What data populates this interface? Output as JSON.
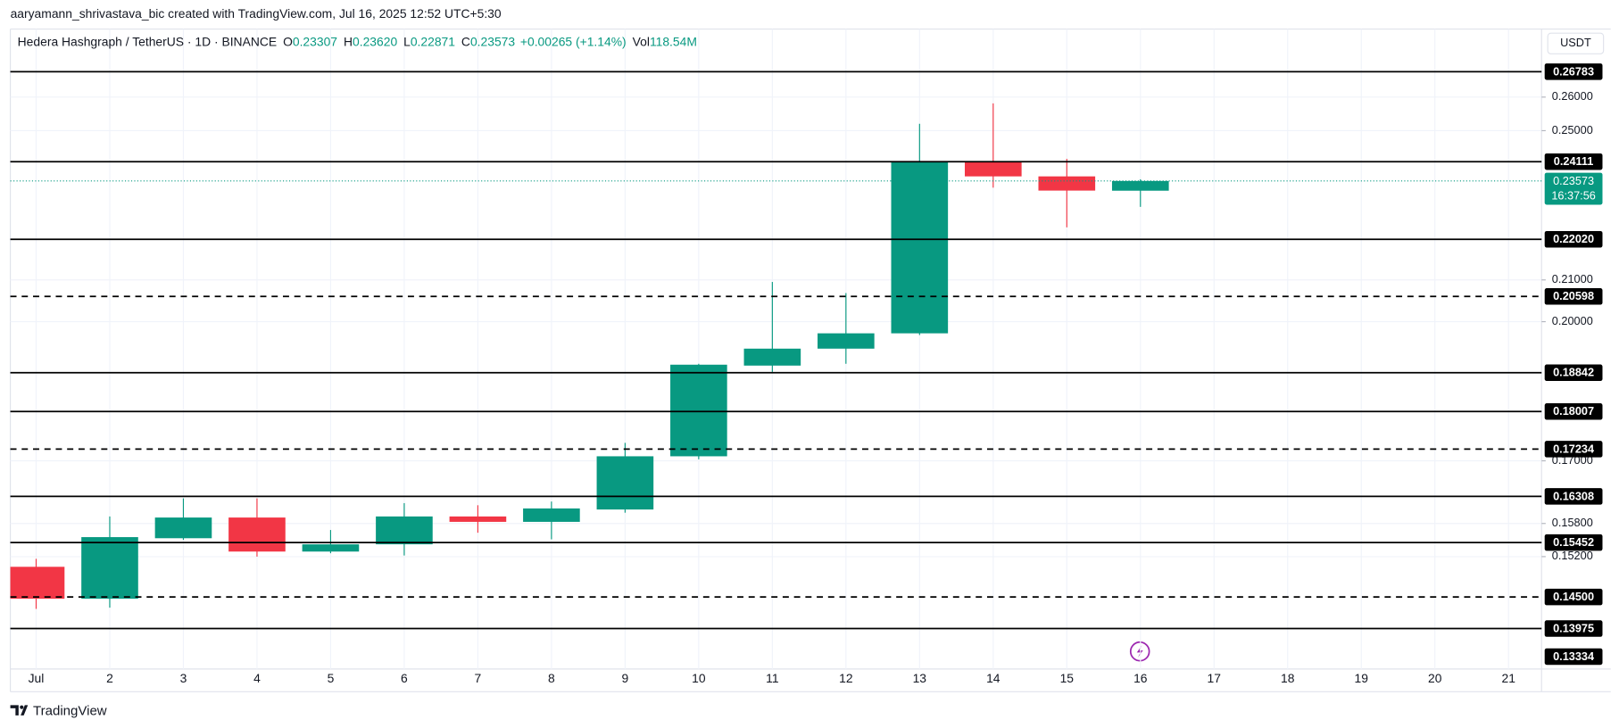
{
  "credit": "aaryamann_shrivastava_bic created with TradingView.com, Jul 16, 2025 12:52 UTC+5:30",
  "brand": "TradingView",
  "chart_data": {
    "type": "candlestick",
    "title": "Hedera Hashgraph / TetherUS · 1D · BINANCE",
    "header": [
      {
        "key": "O",
        "value": "0.23307"
      },
      {
        "key": "H",
        "value": "0.23620"
      },
      {
        "key": "L",
        "value": "0.22871"
      },
      {
        "key": "C",
        "value": "0.23573"
      }
    ],
    "change": "+0.00265 (+1.14%)",
    "volume_key": "Vol",
    "volume": "118.54M",
    "currency": "USDT",
    "categories": [
      "Jul",
      "2",
      "3",
      "4",
      "5",
      "6",
      "7",
      "8",
      "9",
      "10",
      "11",
      "12",
      "13",
      "14",
      "15",
      "16",
      "17",
      "18",
      "19",
      "20",
      "21"
    ],
    "open": [
      0.1502,
      0.1447,
      0.1553,
      0.1591,
      0.1529,
      0.1542,
      0.1593,
      0.1583,
      0.1606,
      0.1709,
      0.19,
      0.1938,
      0.1973,
      0.2411,
      0.237,
      0.23307,
      null,
      null,
      null,
      null,
      null
    ],
    "high": [
      0.1516,
      0.1593,
      0.1627,
      0.1627,
      0.1568,
      0.1618,
      0.1614,
      0.1621,
      0.1736,
      0.1904,
      0.2095,
      0.2068,
      0.252,
      0.2581,
      0.2419,
      0.2362,
      null,
      null,
      null,
      null,
      null
    ],
    "low": [
      0.143,
      0.1432,
      0.155,
      0.152,
      0.1526,
      0.1522,
      0.1563,
      0.1551,
      0.16,
      0.1703,
      0.1886,
      0.1904,
      0.1969,
      0.2339,
      0.2233,
      0.22871,
      null,
      null,
      null,
      null,
      null
    ],
    "close": [
      0.1447,
      0.1555,
      0.1591,
      0.1529,
      0.1542,
      0.1593,
      0.1583,
      0.1608,
      0.1709,
      0.1902,
      0.1938,
      0.1973,
      0.2411,
      0.237,
      0.2331,
      0.23573,
      null,
      null,
      null,
      null,
      null
    ],
    "up_color": "#089981",
    "down_color": "#f23645",
    "log_scale": true,
    "ylim": [
      0.1333,
      0.2815
    ],
    "yticks": [
      {
        "value": 0.26,
        "label": "0.26000"
      },
      {
        "value": 0.25,
        "label": "0.25000"
      },
      {
        "value": 0.21,
        "label": "0.21000"
      },
      {
        "value": 0.2,
        "label": "0.20000"
      },
      {
        "value": 0.17,
        "label": "0.17000"
      },
      {
        "value": 0.158,
        "label": "0.15800"
      },
      {
        "value": 0.152,
        "label": "0.15200"
      }
    ],
    "grid": true,
    "level_color": "#000000",
    "levels": [
      {
        "value": 0.26783,
        "style": "solid"
      },
      {
        "value": 0.24111,
        "style": "solid"
      },
      {
        "value": 0.2202,
        "label": "0.22020",
        "style": "solid"
      },
      {
        "value": 0.20598,
        "style": "dashed"
      },
      {
        "value": 0.18842,
        "style": "solid"
      },
      {
        "value": 0.18007,
        "style": "solid"
      },
      {
        "value": 0.17234,
        "style": "dashed"
      },
      {
        "value": 0.16308,
        "style": "solid"
      },
      {
        "value": 0.15452,
        "style": "solid"
      },
      {
        "value": 0.145,
        "label": "0.14500",
        "style": "dashed"
      },
      {
        "value": 0.13975,
        "style": "solid"
      },
      {
        "value": 0.13334,
        "style": "none"
      }
    ],
    "last_price": {
      "value": 0.23573,
      "countdown": "16:37:56"
    }
  }
}
